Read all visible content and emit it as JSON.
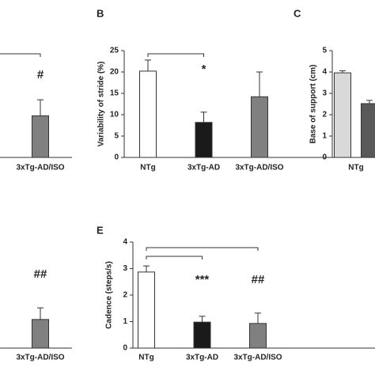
{
  "chart_data": [
    {
      "type": "bar",
      "categories": [
        "3xTg-AD/ISO"
      ],
      "series": [
        {
          "color": "#808080",
          "values": [
            0.39
          ],
          "errors": [
            0.15
          ]
        }
      ],
      "ylim": [
        0,
        1
      ],
      "annotations": [
        {
          "text": "#",
          "category": "3xTg-AD/ISO"
        }
      ],
      "brackets": [
        {
          "to": "3xTg-AD/ISO"
        }
      ]
    },
    {
      "type": "bar",
      "label": "B",
      "ylabel": "Variability of stride (%)",
      "categories": [
        "NTg",
        "3xTg-AD",
        "3xTg-AD/ISO"
      ],
      "series": [
        {
          "color": [
            "#ffffff",
            "#1a1a1a",
            "#808080"
          ],
          "values": [
            20.2,
            8.2,
            14.2
          ],
          "errors": [
            2.6,
            2.4,
            5.8
          ]
        }
      ],
      "ylim": [
        0,
        25
      ],
      "yticks": [
        0,
        5,
        10,
        15,
        20,
        25
      ],
      "annotations": [
        {
          "text": "*",
          "category": "3xTg-AD"
        }
      ],
      "brackets": [
        {
          "from": "NTg",
          "to": "3xTg-AD"
        }
      ]
    },
    {
      "type": "bar",
      "label": "C",
      "ylabel": "Base of support (cm)",
      "categories": [
        "NTg"
      ],
      "series": [
        {
          "color": "#d9d9d9",
          "values": [
            3.96
          ],
          "errors": [
            0.1
          ]
        },
        {
          "color": "#595959",
          "values": [
            2.52
          ],
          "errors": [
            0.15
          ]
        }
      ],
      "ylim": [
        0,
        5
      ],
      "yticks": [
        0,
        1,
        2,
        3,
        4,
        5
      ]
    },
    {
      "type": "bar",
      "categories": [
        "3xTg-AD/ISO"
      ],
      "series": [
        {
          "color": "#808080",
          "values": [
            0.27
          ],
          "errors": [
            0.11
          ]
        }
      ],
      "ylim": [
        0,
        1
      ],
      "annotations": [
        {
          "text": "##",
          "category": "3xTg-AD/ISO"
        }
      ]
    },
    {
      "type": "bar",
      "label": "E",
      "ylabel": "Cadence (steps/s)",
      "categories": [
        "NTg",
        "3xTg-AD",
        "3xTg-AD/ISO"
      ],
      "series": [
        {
          "color": [
            "#ffffff",
            "#1a1a1a",
            "#808080"
          ],
          "values": [
            2.87,
            0.98,
            0.93
          ],
          "errors": [
            0.23,
            0.22,
            0.39
          ]
        }
      ],
      "ylim": [
        0,
        4
      ],
      "yticks": [
        0,
        1,
        2,
        3,
        4
      ],
      "annotations": [
        {
          "text": "***",
          "category": "3xTg-AD"
        },
        {
          "text": "##",
          "category": "3xTg-AD/ISO"
        }
      ],
      "brackets": [
        {
          "from": "NTg",
          "to": "3xTg-AD"
        },
        {
          "from": "NTg",
          "to": "3xTg-AD/ISO"
        }
      ]
    }
  ]
}
